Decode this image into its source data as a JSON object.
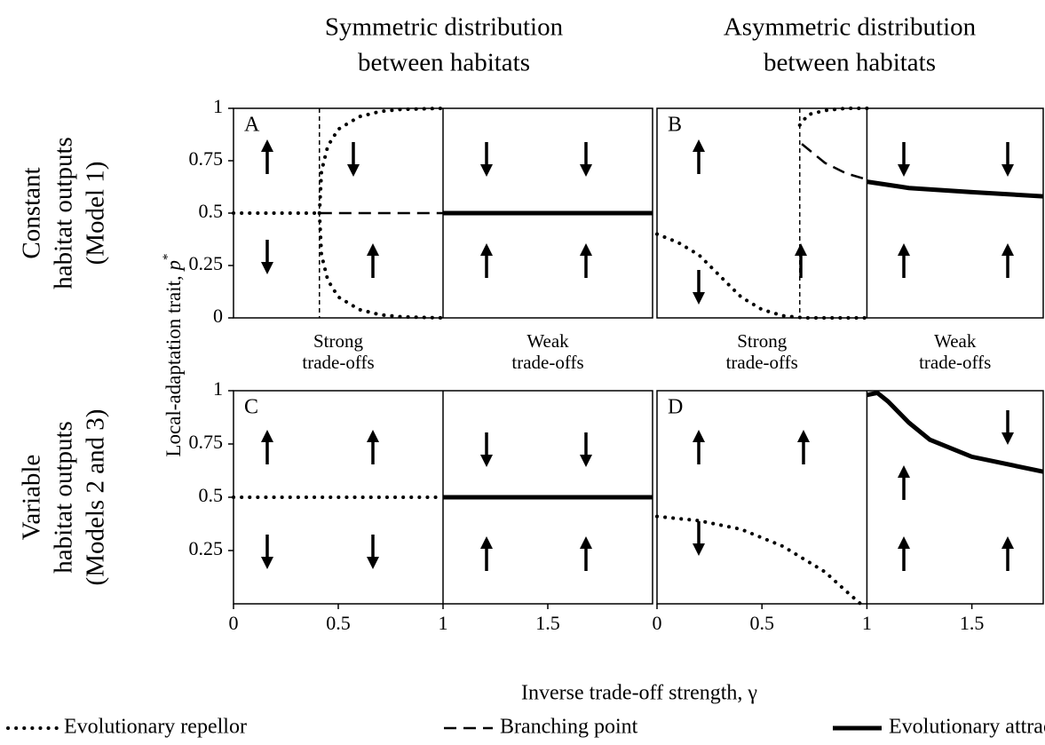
{
  "column_titles": [
    [
      "Symmetric distribution",
      "between habitats"
    ],
    [
      "Asymmetric distribution",
      "between habitats"
    ]
  ],
  "row_titles": [
    [
      "Constant",
      "habitat outputs",
      "(Model 1)"
    ],
    [
      "Variable",
      "habitat outputs",
      "(Models 2 and 3)"
    ]
  ],
  "ylabel": {
    "text": "Local-adaptation trait, ",
    "var": "p",
    "sup": "*"
  },
  "xlabel": "Inverse trade-off strength, γ",
  "legend": [
    {
      "name": "Evolutionary repellor",
      "style": "dotted"
    },
    {
      "name": "Branching point",
      "style": "dashed"
    },
    {
      "name": "Evolutionary attractor",
      "style": "solid"
    }
  ],
  "chart_data": [
    {
      "type": "line",
      "panel_label": "A",
      "xlim": [
        0,
        2
      ],
      "ylim": [
        0,
        1
      ],
      "yticks": [
        0,
        0.25,
        0.5,
        0.75,
        1
      ],
      "annotations": [
        [
          "Strong",
          "trade-offs"
        ],
        [
          "Weak",
          "trade-offs"
        ]
      ],
      "vlines": [
        {
          "x": 0.41,
          "style": "dashed"
        },
        {
          "x": 1,
          "style": "solid"
        }
      ],
      "series": [
        {
          "style": "dotted",
          "x": [
            0,
            0.41
          ],
          "values": [
            0.5,
            0.5
          ]
        },
        {
          "style": "dashed",
          "x": [
            0.41,
            1
          ],
          "values": [
            0.5,
            0.5
          ]
        },
        {
          "style": "solid",
          "x": [
            1,
            2
          ],
          "values": [
            0.5,
            0.5
          ]
        },
        {
          "style": "dotted",
          "x": [
            0.41,
            0.42,
            0.45,
            0.5,
            0.6,
            0.7,
            0.8,
            1
          ],
          "values": [
            0.5,
            0.7,
            0.82,
            0.9,
            0.96,
            0.985,
            0.995,
            1
          ]
        },
        {
          "style": "dotted",
          "x": [
            0.41,
            0.42,
            0.45,
            0.5,
            0.6,
            0.7,
            0.8,
            1
          ],
          "values": [
            0.5,
            0.3,
            0.18,
            0.1,
            0.04,
            0.015,
            0.005,
            0
          ]
        }
      ]
    },
    {
      "type": "line",
      "panel_label": "B",
      "xlim": [
        0,
        1.84
      ],
      "ylim": [
        0,
        1
      ],
      "annotations": [
        [
          "Strong",
          "trade-offs"
        ],
        [
          "Weak",
          "trade-offs"
        ]
      ],
      "vlines": [
        {
          "x": 0.68,
          "style": "dashed"
        },
        {
          "x": 1,
          "style": "solid"
        }
      ],
      "series": [
        {
          "style": "dotted",
          "x": [
            0.68,
            0.72,
            0.8,
            0.9,
            1
          ],
          "values": [
            0.92,
            0.97,
            0.99,
            1,
            1
          ]
        },
        {
          "style": "dashed",
          "x": [
            0.69,
            0.8,
            0.9,
            1
          ],
          "values": [
            0.83,
            0.74,
            0.69,
            0.66
          ]
        },
        {
          "style": "solid",
          "x": [
            1,
            1.2,
            1.5,
            1.84
          ],
          "values": [
            0.65,
            0.62,
            0.6,
            0.58
          ]
        },
        {
          "style": "dotted",
          "x": [
            0,
            0.1,
            0.2,
            0.3,
            0.4,
            0.5,
            0.6,
            0.7,
            1
          ],
          "values": [
            0.4,
            0.36,
            0.3,
            0.2,
            0.1,
            0.04,
            0.01,
            0,
            0
          ]
        }
      ]
    },
    {
      "type": "line",
      "panel_label": "C",
      "xlim": [
        0,
        2
      ],
      "ylim": [
        0,
        1
      ],
      "yticks": [
        0.25,
        0.5,
        0.75,
        1
      ],
      "xticks": [
        0,
        0.5,
        1,
        1.5
      ],
      "vlines": [
        {
          "x": 1,
          "style": "solid"
        }
      ],
      "series": [
        {
          "style": "dotted",
          "x": [
            0,
            1
          ],
          "values": [
            0.5,
            0.5
          ]
        },
        {
          "style": "solid",
          "x": [
            1,
            2
          ],
          "values": [
            0.5,
            0.5
          ]
        }
      ]
    },
    {
      "type": "line",
      "panel_label": "D",
      "xlim": [
        0,
        1.84
      ],
      "ylim": [
        0,
        1
      ],
      "xticks": [
        0,
        0.5,
        1,
        1.5
      ],
      "vlines": [
        {
          "x": 1,
          "style": "solid"
        }
      ],
      "series": [
        {
          "style": "dotted",
          "x": [
            0,
            0.2,
            0.4,
            0.6,
            0.8,
            0.9,
            0.97
          ],
          "values": [
            0.41,
            0.39,
            0.35,
            0.27,
            0.15,
            0.06,
            0
          ]
        },
        {
          "style": "solid",
          "x": [
            1,
            1.05,
            1.1,
            1.2,
            1.3,
            1.5,
            1.84
          ],
          "values": [
            0.98,
            0.99,
            0.95,
            0.85,
            0.77,
            0.69,
            0.62
          ]
        }
      ]
    }
  ]
}
